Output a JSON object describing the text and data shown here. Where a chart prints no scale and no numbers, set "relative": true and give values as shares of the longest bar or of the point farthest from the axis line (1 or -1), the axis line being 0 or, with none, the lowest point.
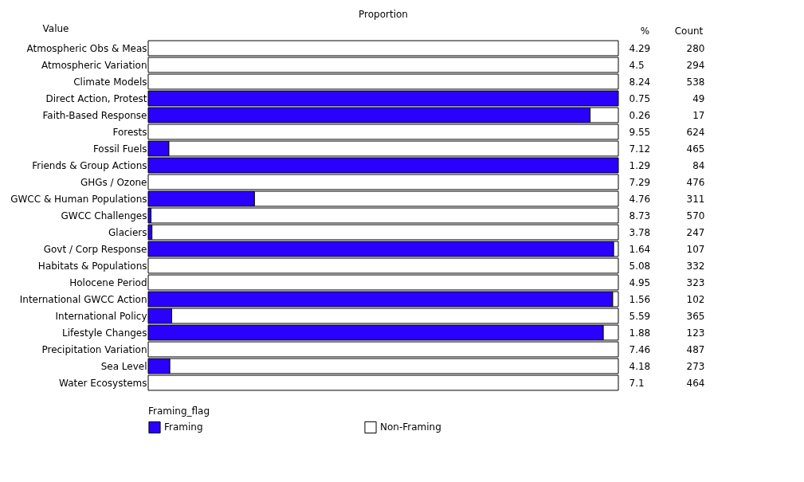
{
  "chart_data": {
    "type": "bar",
    "orientation": "horizontal",
    "stacked": true,
    "relative": true,
    "ylabel": "Value",
    "legend_title": "Framing_flag",
    "legend": "bottom",
    "categories": [
      "Atmospheric Obs & Meas",
      "Atmospheric Variation",
      "Climate Models",
      "Direct Action, Protest",
      "Faith-Based Response",
      "Forests",
      "Fossil Fuels",
      "Friends & Group Actions",
      "GHGs / Ozone",
      "GWCC & Human Populations",
      "GWCC Challenges",
      "Glaciers",
      "Govt / Corp Response",
      "Habitats & Populations",
      "Holocene Period",
      "International GWCC Action",
      "International Policy",
      "Lifestyle Changes",
      "Precipitation Variation",
      "Sea Level",
      "Water Ecosystems"
    ],
    "series": [
      {
        "name": "Framing",
        "color": "#2a00ff",
        "values": [
          0,
          0,
          0,
          1,
          0.94,
          0,
          0.044,
          1,
          0,
          0.226,
          0.006,
          0.008,
          0.99,
          0,
          0,
          0.988,
          0.05,
          0.968,
          0,
          0.046,
          0
        ]
      },
      {
        "name": "Non-Framing",
        "color": "#ffffff",
        "values": [
          1,
          1,
          1,
          0,
          0.06,
          1,
          0.956,
          0,
          1,
          0.774,
          0.994,
          0.992,
          0.01,
          1,
          1,
          0.012,
          0.95,
          0.032,
          1,
          0.954,
          1
        ]
      }
    ],
    "annotations": [
      "Proportion",
      "%",
      "Count",
      "4.29",
      "4.5",
      "8.24",
      "0.75",
      "0.26",
      "9.55",
      "7.12",
      "1.29",
      "7.29",
      "4.76",
      "8.73",
      "3.78",
      "1.64",
      "5.08",
      "4.95",
      "1.56",
      "5.59",
      "1.88",
      "7.46",
      "4.18",
      "7.1",
      "280",
      "294",
      "538",
      "49",
      "17",
      "624",
      "465",
      "84",
      "476",
      "311",
      "570",
      "247",
      "107",
      "332",
      "323",
      "102",
      "365",
      "123",
      "487",
      "273",
      "464"
    ]
  }
}
